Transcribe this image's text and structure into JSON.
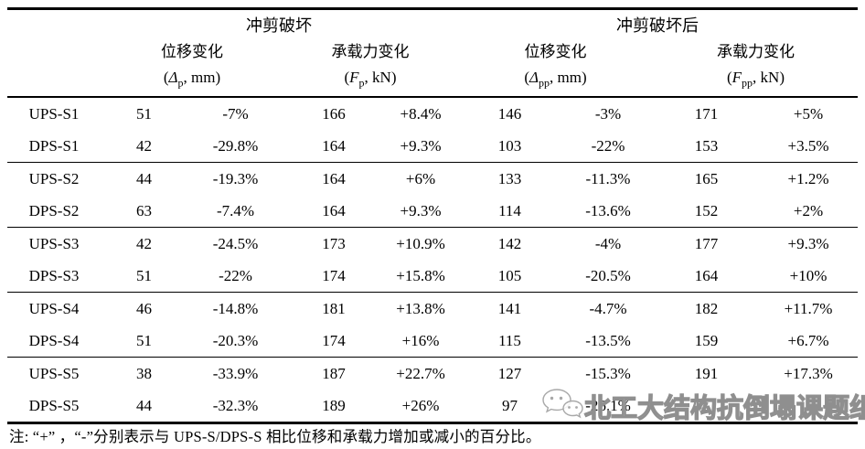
{
  "table": {
    "group_headers": [
      {
        "label": "冲剪破坏"
      },
      {
        "label": "冲剪破坏后"
      }
    ],
    "col_headers": [
      {
        "title": "位移变化",
        "symbol": "Δ",
        "sub": "p",
        "unit": "mm"
      },
      {
        "title": "承载力变化",
        "symbol": "F",
        "sub": "p",
        "unit": "kN"
      },
      {
        "title": "位移变化",
        "symbol": "Δ",
        "sub": "pp",
        "unit": "mm"
      },
      {
        "title": "承载力变化",
        "symbol": "F",
        "sub": "pp",
        "unit": "kN"
      }
    ],
    "rows": [
      {
        "label": "UPS-S1",
        "cells": [
          "51",
          "-7%",
          "166",
          "+8.4%",
          "146",
          "-3%",
          "171",
          "+5%"
        ]
      },
      {
        "label": "DPS-S1",
        "cells": [
          "42",
          "-29.8%",
          "164",
          "+9.3%",
          "103",
          "-22%",
          "153",
          "+3.5%"
        ]
      },
      {
        "label": "UPS-S2",
        "cells": [
          "44",
          "-19.3%",
          "164",
          "+6%",
          "133",
          "-11.3%",
          "165",
          "+1.2%"
        ]
      },
      {
        "label": "DPS-S2",
        "cells": [
          "63",
          "-7.4%",
          "164",
          "+9.3%",
          "114",
          "-13.6%",
          "152",
          "+2%"
        ]
      },
      {
        "label": "UPS-S3",
        "cells": [
          "42",
          "-24.5%",
          "173",
          "+10.9%",
          "142",
          "-4%",
          "177",
          "+9.3%"
        ]
      },
      {
        "label": "DPS-S3",
        "cells": [
          "51",
          "-22%",
          "174",
          "+15.8%",
          "105",
          "-20.5%",
          "164",
          "+10%"
        ]
      },
      {
        "label": "UPS-S4",
        "cells": [
          "46",
          "-14.8%",
          "181",
          "+13.8%",
          "141",
          "-4.7%",
          "182",
          "+11.7%"
        ]
      },
      {
        "label": "DPS-S4",
        "cells": [
          "51",
          "-20.3%",
          "174",
          "+16%",
          "115",
          "-13.5%",
          "159",
          "+6.7%"
        ]
      },
      {
        "label": "UPS-S5",
        "cells": [
          "38",
          "-33.9%",
          "187",
          "+22.7%",
          "127",
          "-15.3%",
          "191",
          "+17.3%"
        ]
      },
      {
        "label": "DPS-S5",
        "cells": [
          "44",
          "-32.3%",
          "189",
          "+26%",
          "97",
          "-26.1%",
          "",
          ""
        ]
      }
    ],
    "note": "注: “+” ，“-”分别表示与 UPS-S/DPS-S 相比位移和承载力增加或减小的百分比。"
  },
  "watermark": {
    "text": "北工大结构抗倒塌课题组",
    "icon": "wechat-bubbles-icon"
  },
  "colors": {
    "text": "#000000",
    "rule": "#000000",
    "watermark_outline": "#8f8f8f",
    "background": "#ffffff"
  }
}
